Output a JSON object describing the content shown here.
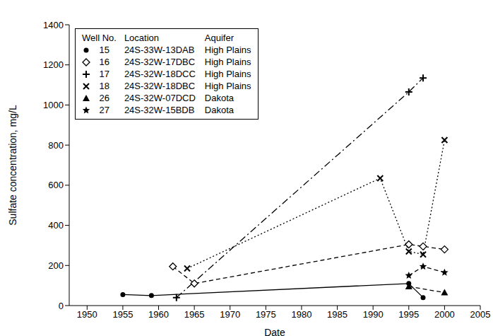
{
  "chart_data": {
    "type": "line",
    "x_label": "Date",
    "y_label": "Sulfate concentration, mg/L",
    "xlim": [
      1947.5,
      2005
    ],
    "xticks": [
      1950,
      1955,
      1960,
      1965,
      1970,
      1975,
      1980,
      1985,
      1990,
      1995,
      2000,
      2005
    ],
    "ylim": [
      0,
      1400
    ],
    "yticks": [
      0,
      200,
      400,
      600,
      800,
      1000,
      1200,
      1400
    ],
    "grid": false,
    "legend": "upper left",
    "legend_columns": [
      "Well No.",
      "Location",
      "Aquifer"
    ],
    "series": [
      {
        "name": "15",
        "location": "24S-33W-13DAB",
        "aquifer": "High Plains",
        "color": "#000000",
        "marker": "circle",
        "line_style": "solid",
        "x": [
          1955,
          1959,
          1995,
          1997
        ],
        "values": [
          55,
          50,
          110,
          40
        ]
      },
      {
        "name": "16",
        "location": "24S-32W-17DBC",
        "aquifer": "High Plains",
        "color": "#000000",
        "marker": "diamond",
        "line_style": "dashed",
        "x": [
          1962,
          1965,
          1995,
          1997,
          2000
        ],
        "values": [
          195,
          110,
          305,
          295,
          280
        ]
      },
      {
        "name": "17",
        "location": "24S-32W-18DCC",
        "aquifer": "High Plains",
        "color": "#000000",
        "marker": "plus",
        "line_style": "dashdot",
        "x": [
          1962.5,
          1995,
          1997
        ],
        "values": [
          40,
          1065,
          1135
        ]
      },
      {
        "name": "18",
        "location": "24S-32W-18DBC",
        "aquifer": "High Plains",
        "color": "#000000",
        "marker": "x",
        "line_style": "dotted",
        "x": [
          1964,
          1991,
          1995,
          1997,
          2000
        ],
        "values": [
          185,
          635,
          270,
          255,
          825
        ]
      },
      {
        "name": "26",
        "location": "24S-32W-07DCD",
        "aquifer": "Dakota",
        "color": "#000000",
        "marker": "triangle",
        "line_style": "dashed",
        "x": [
          1995,
          2000
        ],
        "values": [
          95,
          65
        ]
      },
      {
        "name": "27",
        "location": "24S-32W-15BDB",
        "aquifer": "Dakota",
        "color": "#000000",
        "marker": "star",
        "line_style": "dashed",
        "x": [
          1995,
          1997,
          2000
        ],
        "values": [
          150,
          195,
          165
        ]
      }
    ]
  }
}
